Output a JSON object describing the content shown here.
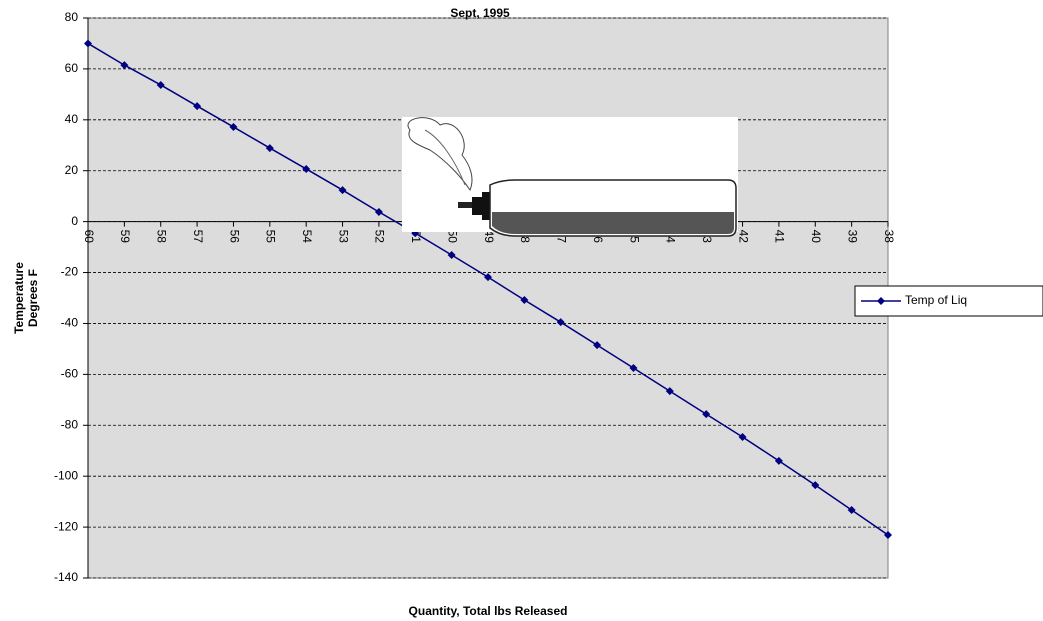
{
  "chart_data": {
    "type": "line",
    "title": "Sept, 1995",
    "x_label": "Quantity, Total lbs Released",
    "y_label": [
      "Temperature",
      "Degrees F"
    ],
    "categories": [
      "60",
      "59",
      "58",
      "57",
      "56",
      "55",
      "54",
      "53",
      "52",
      "51",
      "50",
      "49",
      "48",
      "47",
      "46",
      "45",
      "44",
      "43",
      "42",
      "41",
      "40",
      "39",
      "38"
    ],
    "series": [
      {
        "name": "Temp of Liq",
        "color": "#000080",
        "values": [
          70,
          61.5,
          53.7,
          45.4,
          37.2,
          28.9,
          20.7,
          12.4,
          3.8,
          -4.5,
          -13.1,
          -21.8,
          -30.8,
          -39.5,
          -48.5,
          -57.5,
          -66.6,
          -75.6,
          -84.6,
          -94,
          -103.5,
          -113.3,
          -123.1
        ]
      }
    ],
    "ylim": [
      -140,
      80
    ],
    "yticks": [
      -140,
      -120,
      -100,
      -80,
      -60,
      -40,
      -20,
      0,
      20,
      40,
      60,
      80
    ],
    "grid": true,
    "legend": "right"
  }
}
